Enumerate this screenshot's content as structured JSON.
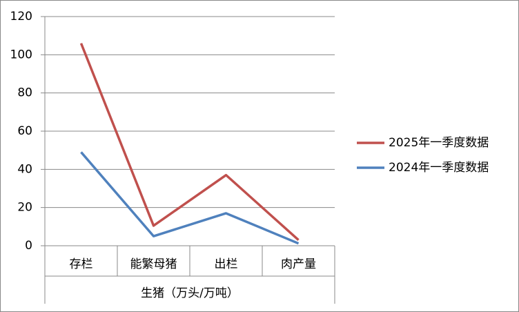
{
  "chart_data": {
    "type": "line",
    "categories": [
      "存栏",
      "能繁母猪",
      "出栏",
      "肉产量"
    ],
    "category_group": "生猪（万头/万吨）",
    "series": [
      {
        "name": "2025年一季度数据",
        "color": "#c0504d",
        "values": [
          106,
          10.5,
          37,
          3
        ]
      },
      {
        "name": "2024年一季度数据",
        "color": "#4f81bd",
        "values": [
          49,
          5,
          17,
          1.2
        ]
      }
    ],
    "ylim": [
      0,
      120
    ],
    "yticks": [
      0,
      20,
      40,
      60,
      80,
      100,
      120
    ],
    "grid": true,
    "legend": "right"
  }
}
